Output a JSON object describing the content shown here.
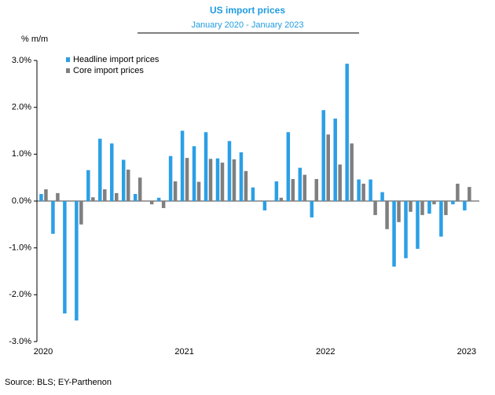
{
  "chart_data": {
    "type": "bar",
    "title": "US import prices",
    "subtitle": "January 2020 - January 2023",
    "y_label": "% m/m",
    "source": "Source: BLS; EY-Parthenon",
    "categories": [
      "2020",
      null,
      null,
      null,
      null,
      null,
      null,
      null,
      null,
      null,
      null,
      null,
      "2021",
      null,
      null,
      null,
      null,
      null,
      null,
      null,
      null,
      null,
      null,
      null,
      "2022",
      null,
      null,
      null,
      null,
      null,
      null,
      null,
      null,
      null,
      null,
      null,
      "2023"
    ],
    "series": [
      {
        "name": "Headline import prices",
        "color": "#2b9fe6",
        "values": [
          0.15,
          -0.7,
          -2.4,
          -2.55,
          0.66,
          1.33,
          1.23,
          0.88,
          0.15,
          0.0,
          0.07,
          0.96,
          1.5,
          1.17,
          1.47,
          0.91,
          1.28,
          1.04,
          0.29,
          -0.2,
          0.42,
          1.47,
          0.71,
          -0.35,
          1.94,
          1.76,
          2.93,
          0.46,
          0.46,
          0.19,
          -1.4,
          -1.22,
          -1.02,
          -0.27,
          -0.76,
          -0.07,
          -0.2
        ]
      },
      {
        "name": "Core import prices",
        "color": "#7f7f7f",
        "values": [
          0.25,
          0.17,
          0.0,
          -0.5,
          0.08,
          0.25,
          0.17,
          0.67,
          0.5,
          -0.07,
          -0.15,
          0.42,
          0.92,
          0.41,
          0.9,
          0.82,
          0.89,
          0.64,
          0.0,
          0.0,
          0.07,
          0.47,
          0.56,
          0.47,
          1.42,
          0.78,
          1.23,
          0.37,
          -0.3,
          -0.6,
          -0.45,
          -0.23,
          -0.3,
          -0.07,
          -0.3,
          0.37,
          0.3
        ]
      }
    ],
    "ylim": [
      -3,
      3
    ],
    "yticks": [
      {
        "value": -3,
        "label": "-3.0%"
      },
      {
        "value": -2,
        "label": "-2.0%"
      },
      {
        "value": -1,
        "label": "-1.0%"
      },
      {
        "value": 0,
        "label": "0.0%"
      },
      {
        "value": 1,
        "label": "1.0%"
      },
      {
        "value": 2,
        "label": "2.0%"
      },
      {
        "value": 3,
        "label": "3.0%"
      }
    ],
    "legend": "top-left"
  }
}
